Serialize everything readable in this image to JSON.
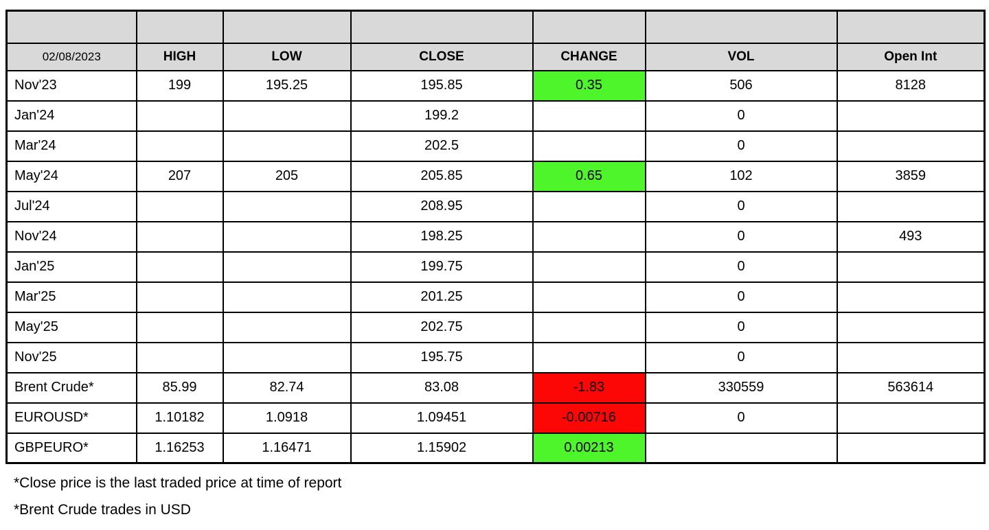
{
  "table": {
    "columns": [
      {
        "key": "label",
        "header": "02/08/2023"
      },
      {
        "key": "high",
        "header": "HIGH"
      },
      {
        "key": "low",
        "header": "LOW"
      },
      {
        "key": "close",
        "header": "CLOSE"
      },
      {
        "key": "change",
        "header": "CHANGE"
      },
      {
        "key": "vol",
        "header": "VOL"
      },
      {
        "key": "open_int",
        "header": "Open Int"
      }
    ],
    "rows": [
      {
        "label": "Nov'23",
        "high": "199",
        "low": "195.25",
        "close": "195.85",
        "change": "0.35",
        "change_color": "positive",
        "vol": "506",
        "open_int": "8128"
      },
      {
        "label": "Jan'24",
        "high": "",
        "low": "",
        "close": "199.2",
        "change": "",
        "change_color": "",
        "vol": "0",
        "open_int": ""
      },
      {
        "label": "Mar'24",
        "high": "",
        "low": "",
        "close": "202.5",
        "change": "",
        "change_color": "",
        "vol": "0",
        "open_int": ""
      },
      {
        "label": "May'24",
        "high": "207",
        "low": "205",
        "close": "205.85",
        "change": "0.65",
        "change_color": "positive",
        "vol": "102",
        "open_int": "3859"
      },
      {
        "label": "Jul'24",
        "high": "",
        "low": "",
        "close": "208.95",
        "change": "",
        "change_color": "",
        "vol": "0",
        "open_int": ""
      },
      {
        "label": "Nov'24",
        "high": "",
        "low": "",
        "close": "198.25",
        "change": "",
        "change_color": "",
        "vol": "0",
        "open_int": "493"
      },
      {
        "label": "Jan'25",
        "high": "",
        "low": "",
        "close": "199.75",
        "change": "",
        "change_color": "",
        "vol": "0",
        "open_int": ""
      },
      {
        "label": "Mar'25",
        "high": "",
        "low": "",
        "close": "201.25",
        "change": "",
        "change_color": "",
        "vol": "0",
        "open_int": ""
      },
      {
        "label": "May'25",
        "high": "",
        "low": "",
        "close": "202.75",
        "change": "",
        "change_color": "",
        "vol": "0",
        "open_int": ""
      },
      {
        "label": "Nov'25",
        "high": "",
        "low": "",
        "close": "195.75",
        "change": "",
        "change_color": "",
        "vol": "0",
        "open_int": ""
      },
      {
        "label": "Brent Crude*",
        "high": "85.99",
        "low": "82.74",
        "close": "83.08",
        "change": "-1.83",
        "change_color": "negative",
        "vol": "330559",
        "open_int": "563614"
      },
      {
        "label": "EUROUSD*",
        "high": "1.10182",
        "low": "1.0918",
        "close": "1.09451",
        "change": "-0.00716",
        "change_color": "negative",
        "vol": "0",
        "open_int": ""
      },
      {
        "label": "GBPEURO*",
        "high": "1.16253",
        "low": "1.16471",
        "close": "1.15902",
        "change": "0.00213",
        "change_color": "positive",
        "vol": "",
        "open_int": ""
      }
    ]
  },
  "footnotes": [
    "*Close price is the last traded price at time of report",
    "*Brent Crude trades in USD"
  ],
  "colors": {
    "header_bg": "#d9d9d9",
    "positive_bg": "#4ef52b",
    "negative_bg": "#fc0606",
    "border": "#000000"
  }
}
